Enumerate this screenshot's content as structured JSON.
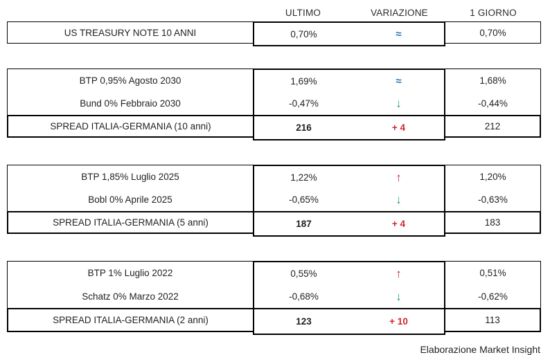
{
  "header": {
    "ultimo": "ULTIMO",
    "variazione": "VARIAZIONE",
    "giorno": "1 GIORNO"
  },
  "colors": {
    "flat_blue": "#2e75b6",
    "down_green": "#1ca25a",
    "up_red": "#bf262c",
    "change_red": "#d2232a",
    "border_black": "#000000"
  },
  "groups": [
    {
      "rows": [
        {
          "label": "US TREASURY NOTE 10 ANNI",
          "ultimo": "0,70%",
          "sym": "≈",
          "dir": "flat",
          "giorno": "0,70%"
        }
      ]
    },
    {
      "rows": [
        {
          "label": "BTP 0,95% Agosto 2030",
          "ultimo": "1,69%",
          "sym": "≈",
          "dir": "flat",
          "giorno": "1,68%"
        },
        {
          "label": "Bund 0% Febbraio 2030",
          "ultimo": "-0,47%",
          "sym": "↓",
          "dir": "down",
          "giorno": "-0,44%"
        }
      ],
      "spread": {
        "label": "SPREAD ITALIA-GERMANIA (10 anni)",
        "ultimo": "216",
        "variazione": "+ 4",
        "giorno": "212"
      }
    },
    {
      "rows": [
        {
          "label": "BTP 1,85% Luglio 2025",
          "ultimo": "1,22%",
          "sym": "↑",
          "dir": "up",
          "giorno": "1,20%"
        },
        {
          "label": "Bobl 0% Aprile 2025",
          "ultimo": "-0,65%",
          "sym": "↓",
          "dir": "down",
          "giorno": "-0,63%"
        }
      ],
      "spread": {
        "label": "SPREAD ITALIA-GERMANIA (5 anni)",
        "ultimo": "187",
        "variazione": "+ 4",
        "giorno": "183"
      }
    },
    {
      "rows": [
        {
          "label": "BTP 1% Luglio 2022",
          "ultimo": "0,55%",
          "sym": "↑",
          "dir": "up",
          "giorno": "0,51%"
        },
        {
          "label": "Schatz 0% Marzo 2022",
          "ultimo": "-0,68%",
          "sym": "↓",
          "dir": "down",
          "giorno": "-0,62%"
        }
      ],
      "spread": {
        "label": "SPREAD ITALIA-GERMANIA (2 anni)",
        "ultimo": "123",
        "variazione": "+ 10",
        "giorno": "113"
      }
    }
  ],
  "footer": {
    "source_note": "Elaborazione Market Insight"
  },
  "chart_data": {
    "type": "table",
    "columns": [
      "",
      "ULTIMO",
      "VARIAZIONE",
      "1 GIORNO"
    ],
    "rows": [
      [
        "US TREASURY NOTE 10 ANNI",
        "0,70%",
        "≈",
        "0,70%"
      ],
      [
        "BTP 0,95% Agosto 2030",
        "1,69%",
        "≈",
        "1,68%"
      ],
      [
        "Bund 0% Febbraio 2030",
        "-0,47%",
        "↓",
        "-0,44%"
      ],
      [
        "SPREAD ITALIA-GERMANIA (10 anni)",
        "216",
        "+ 4",
        "212"
      ],
      [
        "BTP 1,85% Luglio 2025",
        "1,22%",
        "↑",
        "1,20%"
      ],
      [
        "Bobl 0% Aprile 2025",
        "-0,65%",
        "↓",
        "-0,63%"
      ],
      [
        "SPREAD ITALIA-GERMANIA (5 anni)",
        "187",
        "+ 4",
        "183"
      ],
      [
        "BTP 1% Luglio 2022",
        "0,55%",
        "↑",
        "0,51%"
      ],
      [
        "Schatz 0% Marzo 2022",
        "-0,68%",
        "↓",
        "-0,62%"
      ],
      [
        "SPREAD ITALIA-GERMANIA (2 anni)",
        "123",
        "+ 10",
        "113"
      ]
    ],
    "source_note": "Elaborazione Market Insight",
    "legend": {
      "up_arrow": "yield increased (red)",
      "down_arrow": "yield decreased (green)",
      "approx": "unchanged (blue)",
      "spread_change": "spread change in bp (red)"
    }
  }
}
